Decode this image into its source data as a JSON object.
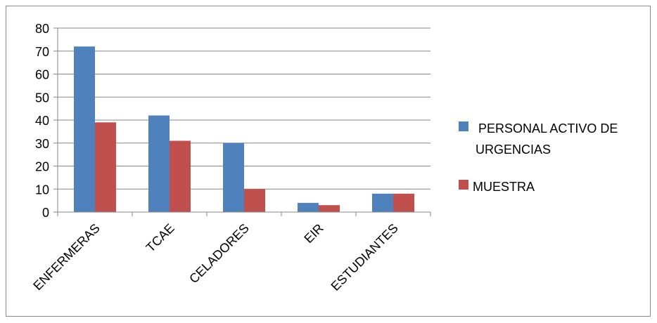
{
  "chart_data": {
    "type": "bar",
    "categories": [
      "ENFERMERAS",
      "TCAE",
      "CELADORES",
      "EIR",
      "ESTUDIANTES"
    ],
    "series": [
      {
        "name": "PERSONAL ACTIVO DE URGENCIAS",
        "values": [
          72,
          42,
          30,
          4,
          8
        ],
        "color": "#4f81bd"
      },
      {
        "name": "MUESTRA",
        "values": [
          39,
          31,
          10,
          3,
          8
        ],
        "color": "#c0504d"
      }
    ],
    "legend_lines": [
      [
        "PERSONAL ACTIVO DE",
        "URGENCIAS"
      ],
      [
        "MUESTRA"
      ]
    ],
    "ylim": [
      0,
      80
    ],
    "yticks": [
      0,
      10,
      20,
      30,
      40,
      50,
      60,
      70,
      80
    ],
    "grid": true,
    "legend_position": "right"
  }
}
